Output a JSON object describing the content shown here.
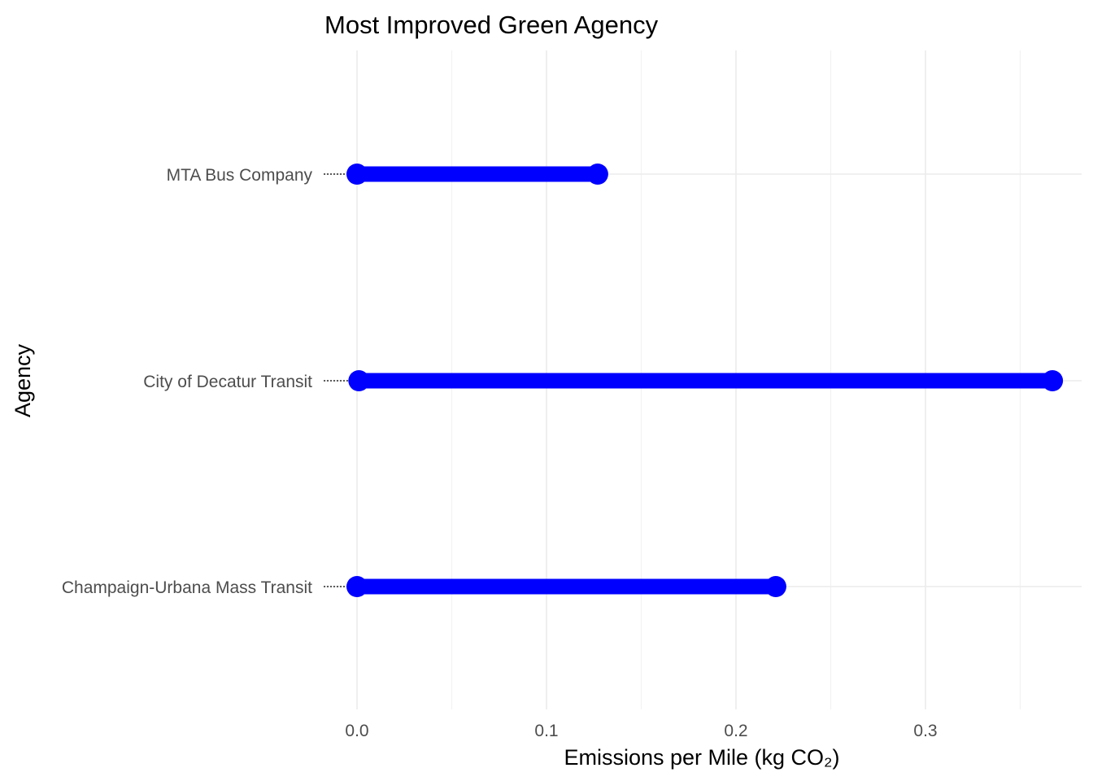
{
  "chart_data": {
    "type": "lollipop",
    "title": "Most Improved Green Agency",
    "xlabel": "Emissions per Mile (kg CO₂)",
    "ylabel": "Agency",
    "xlim": [
      0,
      0.38
    ],
    "x_ticks": [
      0.0,
      0.1,
      0.2,
      0.3
    ],
    "x_tick_labels": [
      "0.0",
      "0.1",
      "0.2",
      "0.3"
    ],
    "categories": [
      "MTA Bus Company",
      "City of Decatur Transit",
      "Champaign-Urbana Mass Transit"
    ],
    "series": [
      {
        "start": [
          0.0,
          0.001,
          0.0
        ],
        "values": [
          0.127,
          0.367,
          0.221
        ]
      }
    ],
    "grid": true,
    "color": "#0000ff"
  }
}
